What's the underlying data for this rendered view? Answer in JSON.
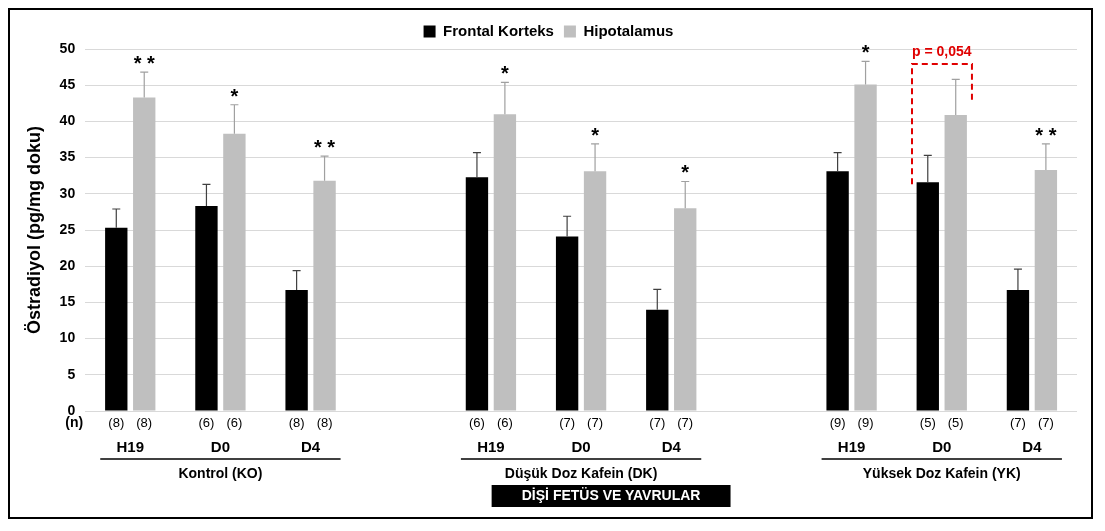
{
  "chart_data": {
    "type": "bar",
    "ylabel": "Östradiyol (pg/mg doku)",
    "xlabel": "DİŞİ FETÜS VE YAVRULAR",
    "categories": [
      "H19",
      "D0",
      "D4",
      null,
      "H19",
      "D0",
      "D4",
      null,
      "H19",
      "D0",
      "D4"
    ],
    "series": [
      {
        "name": "Frontal Korteks",
        "color": "#000000",
        "values": [
          25.3,
          28.3,
          16.7,
          null,
          32.3,
          24.1,
          14.0,
          null,
          33.1,
          31.6,
          16.7
        ],
        "errors": [
          [
            25.3,
            27.9
          ],
          [
            28.3,
            31.3
          ],
          [
            16.7,
            19.4
          ],
          null,
          [
            32.3,
            35.7
          ],
          [
            24.1,
            26.9
          ],
          [
            14.0,
            16.8
          ],
          null,
          [
            33.1,
            35.7
          ],
          [
            31.6,
            35.3
          ],
          [
            16.7,
            19.6
          ]
        ]
      },
      {
        "name": "Hipotalamus",
        "color": "#bfbfbf",
        "values": [
          43.3,
          38.3,
          31.8,
          null,
          41.0,
          33.1,
          28.0,
          null,
          45.1,
          40.9,
          33.3
        ],
        "errors": [
          [
            43.3,
            46.8
          ],
          [
            38.3,
            42.3
          ],
          [
            31.8,
            35.2
          ],
          null,
          [
            41.0,
            45.4
          ],
          [
            33.1,
            36.9
          ],
          [
            28.0,
            31.7
          ],
          null,
          [
            45.1,
            48.3
          ],
          [
            40.9,
            45.8
          ],
          [
            33.3,
            36.9
          ]
        ],
        "value_labels": [
          "* *",
          "*",
          "* *",
          null,
          "*",
          "*",
          "*",
          null,
          "*",
          null,
          "* *"
        ]
      }
    ],
    "annotations": [
      "(n)",
      "(8)",
      "(8)",
      "(6)",
      "(6)",
      "(8)",
      "(8)",
      "(6)",
      "(6)",
      "(7)",
      "(7)",
      "(7)",
      "(7)",
      "(9)",
      "(9)",
      "(5)",
      "(5)",
      "(7)",
      "(7)",
      "Kontrol (KO)",
      "Düşük Doz Kafein (DK)",
      "Yüksek Doz Kafein (YK)",
      "p = 0,054"
    ],
    "ylim": [
      0,
      50
    ],
    "yticks": [
      0,
      5,
      10,
      15,
      20,
      25,
      30,
      35,
      40,
      45,
      50
    ],
    "grid": "y",
    "legend": "top"
  }
}
